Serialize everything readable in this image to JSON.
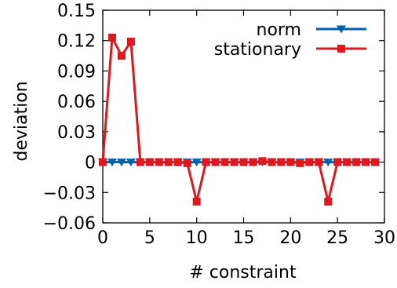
{
  "chart_data": {
    "type": "line",
    "xlabel": "# constraint",
    "ylabel": "deviation",
    "xlim": [
      0,
      30
    ],
    "ylim": [
      -0.06,
      0.15
    ],
    "xticks": [
      0,
      5,
      10,
      15,
      20,
      25,
      30
    ],
    "xtick_labels": [
      "0",
      "5",
      "10",
      "15",
      "20",
      "25",
      "30"
    ],
    "yticks": [
      -0.06,
      -0.03,
      0,
      0.03,
      0.06,
      0.09,
      0.12,
      0.15
    ],
    "ytick_labels": [
      "−0.06",
      "−0.03",
      "0",
      "0.03",
      "0.06",
      "0.09",
      "0.12",
      "0.15"
    ],
    "legend_position": "top-right",
    "grid": false,
    "series": [
      {
        "name": "norm",
        "color": "#0060ad",
        "marker": "triangle-down",
        "x": [
          0,
          1,
          2,
          3,
          4,
          5,
          6,
          7,
          8,
          9,
          10,
          11,
          12,
          13,
          14,
          15,
          16,
          17,
          18,
          19,
          20,
          21,
          22,
          23,
          24,
          25,
          26,
          27,
          28,
          29
        ],
        "y": [
          0,
          0,
          0,
          0,
          0,
          0,
          0,
          0,
          0,
          0,
          0,
          0,
          0,
          0,
          0,
          0,
          0,
          0,
          0,
          0,
          0,
          0,
          0,
          0,
          0,
          0,
          0,
          0,
          0,
          0
        ]
      },
      {
        "name": "stationary",
        "color": "#dd181f",
        "marker": "square",
        "x": [
          0,
          1,
          2,
          3,
          4,
          5,
          6,
          7,
          8,
          9,
          10,
          11,
          12,
          13,
          14,
          15,
          16,
          17,
          18,
          19,
          20,
          21,
          22,
          23,
          24,
          25,
          26,
          27,
          28,
          29
        ],
        "y": [
          0,
          0.123,
          0.105,
          0.119,
          0,
          0,
          0,
          0,
          0,
          -0.001,
          -0.039,
          0,
          0,
          0,
          0,
          0,
          0,
          0.001,
          0,
          0,
          0,
          -0.001,
          0,
          0,
          -0.039,
          0,
          0,
          0,
          0,
          0
        ]
      }
    ]
  }
}
